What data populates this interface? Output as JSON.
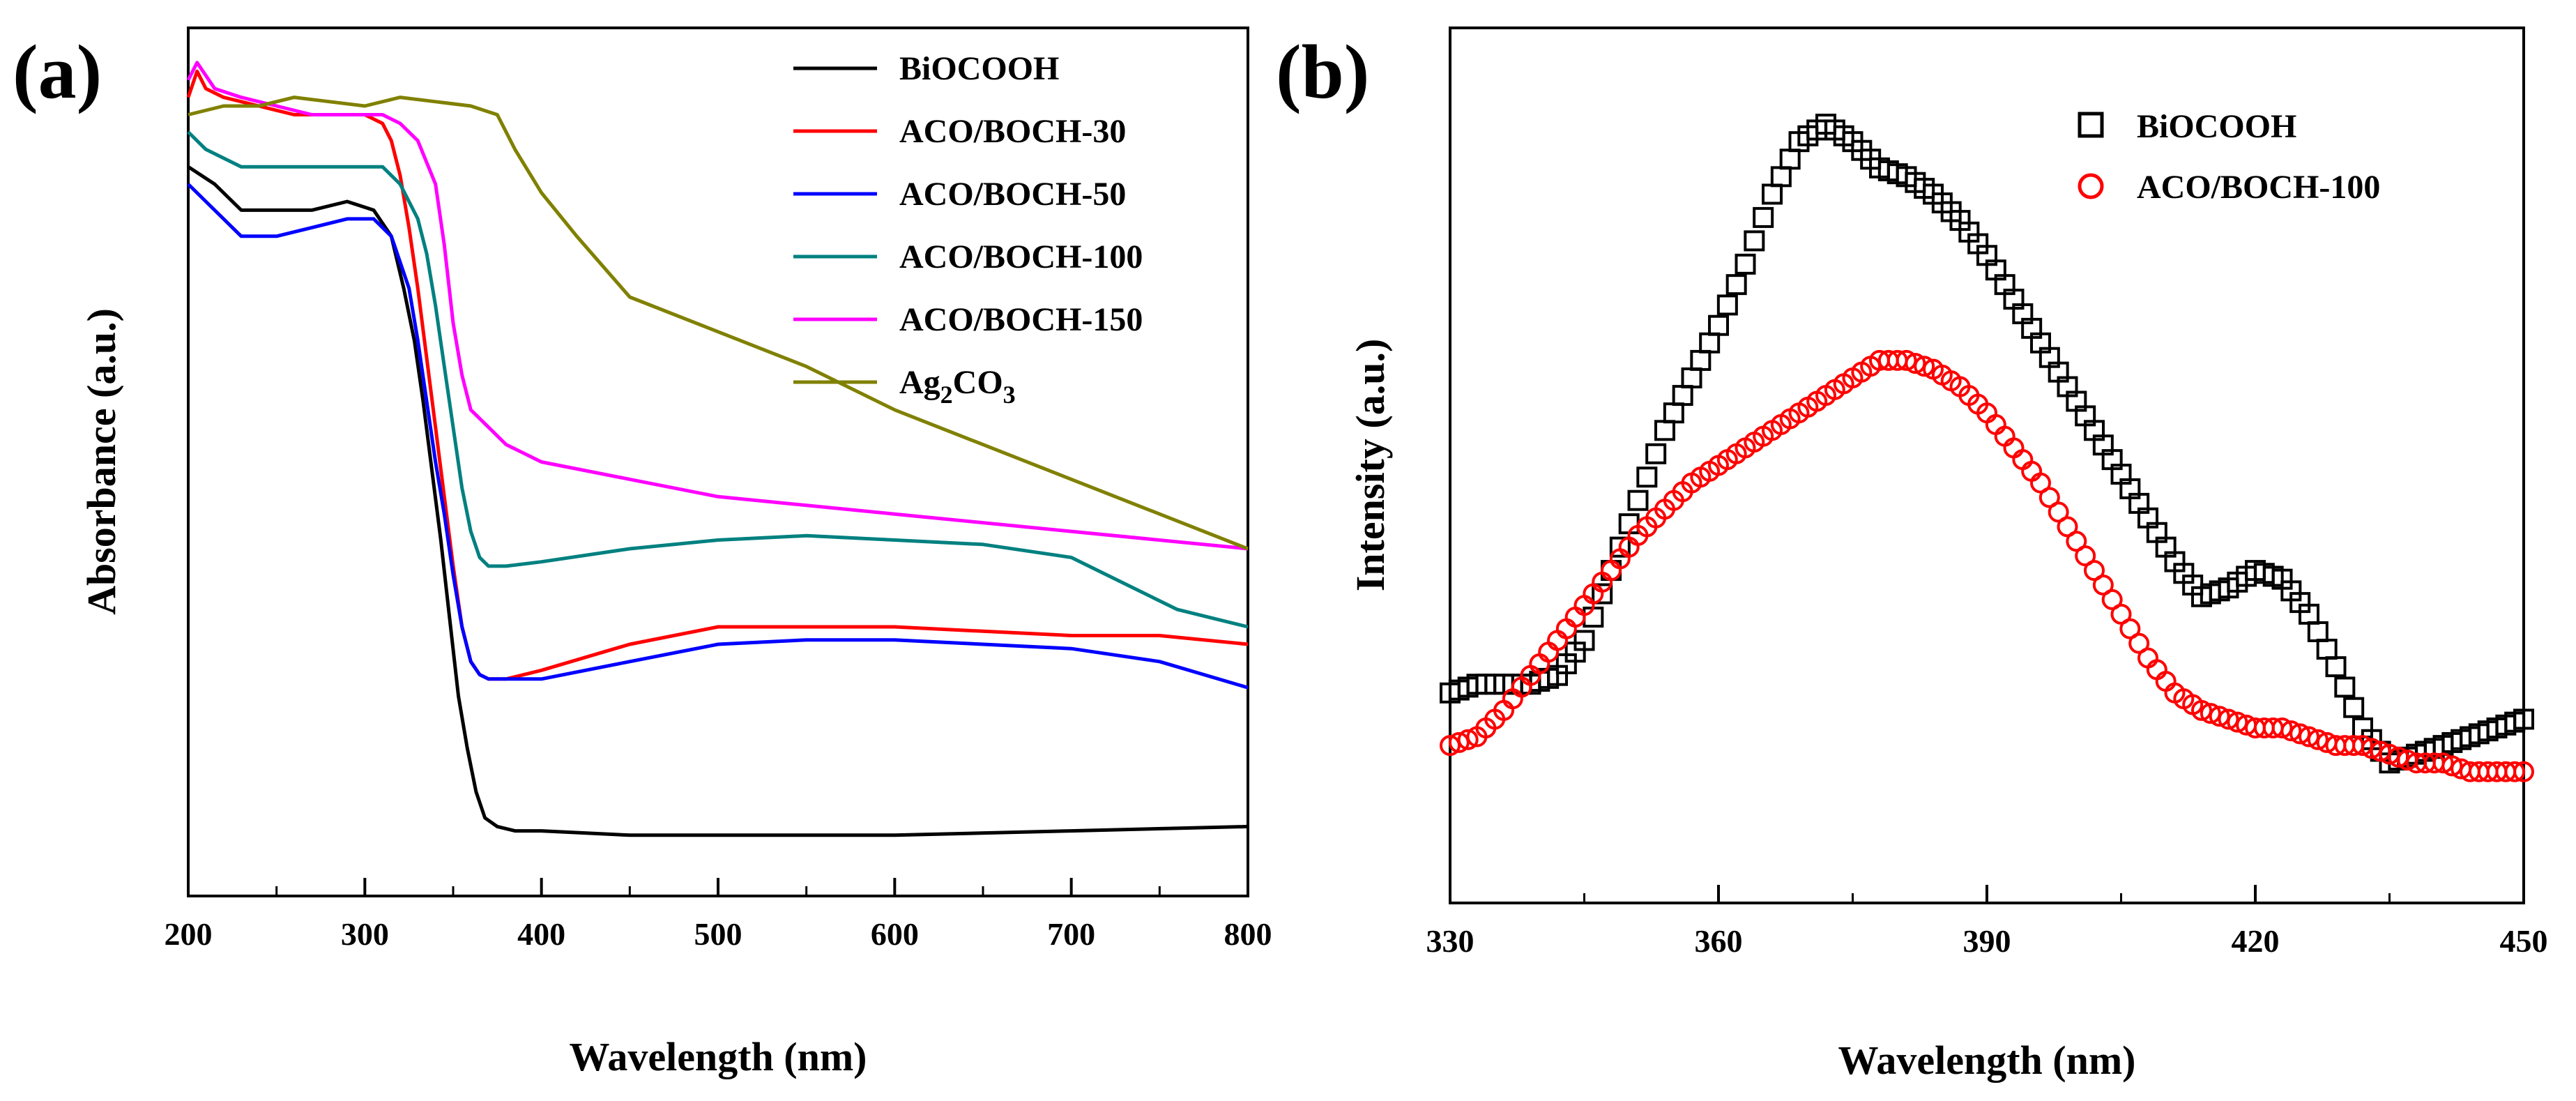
{
  "figure": {
    "panels": [
      "(a)",
      "(b)"
    ]
  },
  "chart_data": [
    {
      "panel": "(a)",
      "type": "line",
      "title": "",
      "xlabel": "Wavelength (nm)",
      "ylabel": "Absorbance (a.u.)",
      "xlim": [
        200,
        800
      ],
      "ylim": [
        0,
        1.0
      ],
      "xticks": [
        200,
        300,
        400,
        500,
        600,
        700,
        800
      ],
      "yticks_visible": false,
      "legend_position": "top-right",
      "series": [
        {
          "name": "BiOCOOH",
          "color": "#000000",
          "x": [
            200,
            215,
            230,
            250,
            270,
            290,
            305,
            315,
            322,
            328,
            333,
            338,
            343,
            348,
            353,
            358,
            363,
            368,
            375,
            385,
            400,
            450,
            500,
            600,
            700,
            800
          ],
          "y": [
            0.84,
            0.82,
            0.79,
            0.79,
            0.79,
            0.8,
            0.79,
            0.76,
            0.7,
            0.64,
            0.57,
            0.49,
            0.41,
            0.32,
            0.23,
            0.17,
            0.12,
            0.09,
            0.08,
            0.075,
            0.075,
            0.07,
            0.07,
            0.07,
            0.075,
            0.08
          ]
        },
        {
          "name": "ACO/BOCH-30",
          "color": "#ff0000",
          "x": [
            200,
            205,
            210,
            220,
            240,
            260,
            280,
            300,
            310,
            315,
            320,
            325,
            330,
            335,
            340,
            345,
            350,
            355,
            360,
            365,
            370,
            375,
            380,
            400,
            450,
            500,
            550,
            600,
            650,
            700,
            750,
            800
          ],
          "y": [
            0.92,
            0.95,
            0.93,
            0.92,
            0.91,
            0.9,
            0.9,
            0.9,
            0.89,
            0.87,
            0.83,
            0.77,
            0.7,
            0.62,
            0.54,
            0.46,
            0.38,
            0.31,
            0.27,
            0.255,
            0.25,
            0.25,
            0.25,
            0.26,
            0.29,
            0.31,
            0.31,
            0.31,
            0.305,
            0.3,
            0.3,
            0.29
          ]
        },
        {
          "name": "ACO/BOCH-50",
          "color": "#0000ff",
          "x": [
            200,
            210,
            230,
            250,
            270,
            290,
            305,
            315,
            325,
            330,
            335,
            340,
            345,
            350,
            355,
            360,
            365,
            370,
            380,
            400,
            450,
            500,
            550,
            600,
            650,
            700,
            750,
            800
          ],
          "y": [
            0.82,
            0.8,
            0.76,
            0.76,
            0.77,
            0.78,
            0.78,
            0.76,
            0.7,
            0.64,
            0.57,
            0.5,
            0.44,
            0.37,
            0.31,
            0.27,
            0.255,
            0.25,
            0.25,
            0.25,
            0.27,
            0.29,
            0.295,
            0.295,
            0.29,
            0.285,
            0.27,
            0.24
          ]
        },
        {
          "name": "ACO/BOCH-100",
          "color": "#008080",
          "x": [
            200,
            210,
            230,
            250,
            270,
            290,
            310,
            320,
            330,
            335,
            340,
            345,
            350,
            355,
            360,
            365,
            370,
            380,
            400,
            450,
            500,
            550,
            600,
            650,
            700,
            720,
            740,
            760,
            780,
            800
          ],
          "y": [
            0.88,
            0.86,
            0.84,
            0.84,
            0.84,
            0.84,
            0.84,
            0.82,
            0.78,
            0.74,
            0.68,
            0.61,
            0.54,
            0.47,
            0.42,
            0.39,
            0.38,
            0.38,
            0.385,
            0.4,
            0.41,
            0.415,
            0.41,
            0.405,
            0.39,
            0.37,
            0.35,
            0.33,
            0.32,
            0.31
          ]
        },
        {
          "name": "ACO/BOCH-150",
          "color": "#ff00ff",
          "x": [
            200,
            205,
            215,
            230,
            250,
            270,
            290,
            310,
            320,
            330,
            340,
            345,
            350,
            355,
            360,
            370,
            380,
            400,
            450,
            500,
            600,
            700,
            800
          ],
          "y": [
            0.94,
            0.96,
            0.93,
            0.92,
            0.91,
            0.9,
            0.9,
            0.9,
            0.89,
            0.87,
            0.82,
            0.75,
            0.66,
            0.6,
            0.56,
            0.54,
            0.52,
            0.5,
            0.48,
            0.46,
            0.44,
            0.42,
            0.4
          ]
        },
        {
          "name": "Ag2CO3",
          "color": "#808000",
          "x": [
            200,
            220,
            240,
            260,
            280,
            300,
            320,
            340,
            360,
            375,
            385,
            400,
            420,
            450,
            500,
            550,
            600,
            650,
            700,
            750,
            800
          ],
          "y": [
            0.9,
            0.91,
            0.91,
            0.92,
            0.915,
            0.91,
            0.92,
            0.915,
            0.91,
            0.9,
            0.86,
            0.81,
            0.76,
            0.69,
            0.65,
            0.61,
            0.56,
            0.52,
            0.48,
            0.44,
            0.4
          ]
        }
      ],
      "legend_labels": [
        "BiOCOOH",
        "ACO/BOCH-30",
        "ACO/BOCH-50",
        "ACO/BOCH-100",
        "ACO/BOCH-150"
      ],
      "legend_ag": {
        "main": "Ag",
        "sub1": "2",
        "mid": "CO",
        "sub2": "3"
      }
    },
    {
      "panel": "(b)",
      "type": "scatter",
      "title": "",
      "xlabel": "Wavelength (nm)",
      "ylabel": "Intensity (a.u.)",
      "xlim": [
        330,
        450
      ],
      "ylim": [
        0,
        1.0
      ],
      "xticks": [
        330,
        360,
        390,
        420,
        450
      ],
      "yticks_visible": false,
      "legend_position": "top-right",
      "series": [
        {
          "name": "BiOCOOH",
          "color": "#000000",
          "marker": "square",
          "x": [
            330,
            333,
            336,
            339,
            342,
            345,
            348,
            351,
            354,
            357,
            360,
            363,
            366,
            369,
            372,
            375,
            378,
            381,
            384,
            387,
            390,
            393,
            396,
            399,
            402,
            405,
            408,
            411,
            414,
            417,
            420,
            423,
            426,
            429,
            432,
            435,
            438,
            441,
            444,
            447,
            450
          ],
          "y": [
            0.24,
            0.25,
            0.25,
            0.25,
            0.26,
            0.3,
            0.38,
            0.46,
            0.54,
            0.6,
            0.66,
            0.73,
            0.81,
            0.87,
            0.89,
            0.87,
            0.84,
            0.83,
            0.81,
            0.78,
            0.74,
            0.69,
            0.64,
            0.59,
            0.54,
            0.49,
            0.44,
            0.39,
            0.35,
            0.36,
            0.38,
            0.37,
            0.33,
            0.27,
            0.2,
            0.16,
            0.17,
            0.18,
            0.19,
            0.2,
            0.21
          ]
        },
        {
          "name": "ACO/BOCH-100",
          "color": "#ff0000",
          "marker": "circle",
          "x": [
            330,
            333,
            336,
            339,
            342,
            345,
            348,
            351,
            354,
            357,
            360,
            363,
            366,
            369,
            372,
            375,
            378,
            381,
            384,
            387,
            390,
            393,
            396,
            399,
            402,
            405,
            408,
            411,
            414,
            417,
            420,
            423,
            426,
            429,
            432,
            435,
            438,
            441,
            444,
            447,
            450
          ],
          "y": [
            0.18,
            0.19,
            0.22,
            0.26,
            0.3,
            0.34,
            0.38,
            0.42,
            0.45,
            0.48,
            0.5,
            0.52,
            0.54,
            0.56,
            0.58,
            0.6,
            0.62,
            0.62,
            0.61,
            0.59,
            0.56,
            0.52,
            0.48,
            0.43,
            0.38,
            0.33,
            0.28,
            0.24,
            0.22,
            0.21,
            0.2,
            0.2,
            0.19,
            0.18,
            0.18,
            0.17,
            0.16,
            0.16,
            0.15,
            0.15,
            0.15
          ]
        }
      ]
    }
  ]
}
